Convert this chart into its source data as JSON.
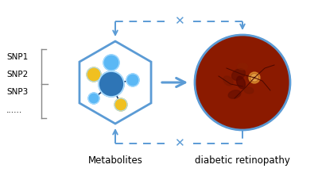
{
  "bg_color": "#ffffff",
  "hex_color": "#5b9bd5",
  "hex_fill": "#ffffff",
  "node_big_color": "#2e75b6",
  "node_med_color": "#5bb8f5",
  "node_small_color": "#f0c020",
  "snp_labels": [
    "SNP1",
    "SNP2",
    "SNP3",
    "......"
  ],
  "label_metabolites": "Metabolites",
  "label_retinopathy": "diabetic retinopathy",
  "arrow_color": "#5b9bd5",
  "dashed_color": "#5b9bd5",
  "x_mark_color": "#4472c4",
  "fig_width": 4.0,
  "fig_height": 2.22,
  "dpi": 100
}
